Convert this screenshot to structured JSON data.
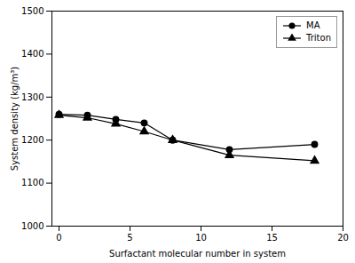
{
  "chart_data": {
    "type": "line",
    "xlabel": "Surfactant molecular number in system",
    "ylabel": "System density (kg/m³)",
    "x": [
      0,
      2,
      4,
      6,
      8,
      12,
      18
    ],
    "series": [
      {
        "name": "MA",
        "color": "#000000",
        "marker": "circle",
        "values": [
          1260,
          1258,
          1248,
          1240,
          1200,
          1178,
          1190
        ]
      },
      {
        "name": "Triton",
        "color": "#000000",
        "marker": "triangle",
        "values": [
          1258,
          1252,
          1238,
          1220,
          1200,
          1165,
          1152
        ]
      }
    ],
    "xlim": [
      -0.5,
      20
    ],
    "ylim": [
      1000,
      1500
    ],
    "xticks": [
      0,
      5,
      10,
      15,
      20
    ],
    "yticks": [
      1000,
      1100,
      1200,
      1300,
      1400,
      1500
    ],
    "legend": "upper right",
    "grid": false
  }
}
